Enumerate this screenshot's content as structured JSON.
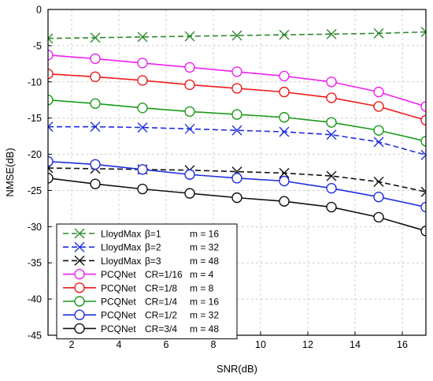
{
  "chart_data": {
    "type": "line",
    "xlabel": "SNR(dB)",
    "ylabel": "NMSE(dB)",
    "xlim": [
      1,
      17
    ],
    "ylim": [
      -45,
      0
    ],
    "x_ticks": [
      2,
      4,
      6,
      8,
      10,
      12,
      14,
      16
    ],
    "y_ticks": [
      0,
      -5,
      -10,
      -15,
      -20,
      -25,
      -30,
      -35,
      -40,
      -45
    ],
    "grid": true,
    "legend_position": "bottom-left",
    "x": [
      1,
      3,
      5,
      7,
      9,
      11,
      13,
      15,
      17
    ],
    "series": [
      {
        "name": "LloydMax",
        "param": "β=1",
        "m": "m = 16",
        "color": "#2e8b2e",
        "marker": "x",
        "dashed": true,
        "values": [
          -4.0,
          -3.9,
          -3.8,
          -3.7,
          -3.6,
          -3.5,
          -3.4,
          -3.3,
          -3.1
        ]
      },
      {
        "name": "LloydMax",
        "param": "β=2",
        "m": "m = 32",
        "color": "#1f2fe0",
        "marker": "x",
        "dashed": true,
        "values": [
          -16.2,
          -16.2,
          -16.3,
          -16.5,
          -16.7,
          -16.9,
          -17.3,
          -18.3,
          -20.1
        ]
      },
      {
        "name": "LloydMax",
        "param": "β=3",
        "m": "m = 48",
        "color": "#111111",
        "marker": "x",
        "dashed": true,
        "values": [
          -21.9,
          -22.0,
          -22.1,
          -22.2,
          -22.4,
          -22.6,
          -23.0,
          -23.8,
          -25.2
        ]
      },
      {
        "name": "PCQNet",
        "param": "CR=1/16",
        "m": "m = 4",
        "color": "#f020f0",
        "marker": "circle",
        "dashed": false,
        "values": [
          -6.3,
          -6.8,
          -7.4,
          -8.0,
          -8.6,
          -9.2,
          -10.0,
          -11.4,
          -13.4
        ]
      },
      {
        "name": "PCQNet",
        "param": "CR=1/8",
        "m": "m = 8",
        "color": "#ee1c1c",
        "marker": "circle",
        "dashed": false,
        "values": [
          -8.9,
          -9.3,
          -9.8,
          -10.4,
          -10.9,
          -11.4,
          -12.2,
          -13.4,
          -15.3
        ]
      },
      {
        "name": "PCQNet",
        "param": "CR=1/4",
        "m": "m = 16",
        "color": "#1a9a1a",
        "marker": "circle",
        "dashed": false,
        "values": [
          -12.5,
          -13.0,
          -13.6,
          -14.1,
          -14.5,
          -14.9,
          -15.6,
          -16.7,
          -18.2
        ]
      },
      {
        "name": "PCQNet",
        "param": "CR=1/2",
        "m": "m = 32",
        "color": "#1f2fe0",
        "marker": "circle",
        "dashed": false,
        "values": [
          -21.0,
          -21.4,
          -22.1,
          -22.8,
          -23.3,
          -23.7,
          -24.7,
          -25.9,
          -27.3
        ]
      },
      {
        "name": "PCQNet",
        "param": "CR=3/4",
        "m": "m = 48",
        "color": "#111111",
        "marker": "circle",
        "dashed": false,
        "values": [
          -23.3,
          -24.1,
          -24.8,
          -25.4,
          -26.0,
          -26.5,
          -27.3,
          -28.7,
          -30.6
        ]
      }
    ]
  }
}
